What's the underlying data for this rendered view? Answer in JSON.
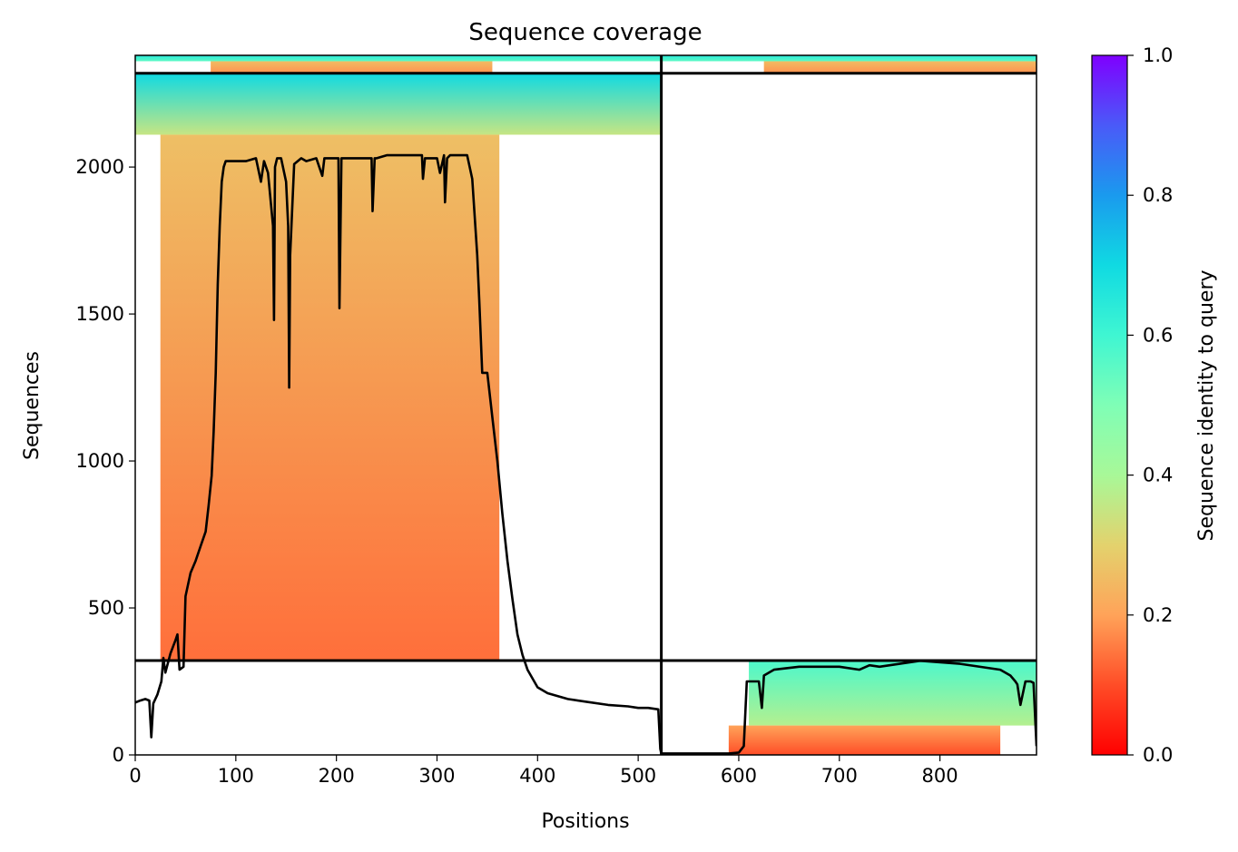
{
  "chart_data": {
    "type": "heatmap",
    "title": "Sequence coverage",
    "xlabel": "Positions",
    "ylabel": "Sequences",
    "xlim": [
      0,
      896
    ],
    "ylim": [
      0,
      2380
    ],
    "xticks": [
      0,
      100,
      200,
      300,
      400,
      500,
      600,
      700,
      800
    ],
    "yticks": [
      0,
      500,
      1000,
      1500,
      2000
    ],
    "domain_boundaries": {
      "x": [
        523
      ],
      "y": [
        321,
        2319
      ]
    },
    "colorbar": {
      "label": "Sequence identity to query",
      "colormap": "rainbow",
      "range": [
        0.0,
        1.0
      ],
      "ticks": [
        "0.0",
        "0.2",
        "0.4",
        "0.6",
        "0.8",
        "1.0"
      ]
    },
    "coverage_blocks": [
      {
        "name": "block-chain1-main",
        "x_start": 25,
        "x_end": 362,
        "y_start": 321,
        "y_end": 2110,
        "identity_bottom": 0.14,
        "identity_top": 0.26
      },
      {
        "name": "block-chain1-top",
        "x_start": 0,
        "x_end": 523,
        "y_start": 2110,
        "y_end": 2319,
        "identity_bottom": 0.35,
        "identity_top": 0.7
      },
      {
        "name": "block-chain1-upper-strip",
        "x_start": 75,
        "x_end": 355,
        "y_start": 2319,
        "y_end": 2360,
        "identity_bottom": 0.18,
        "identity_top": 0.25
      },
      {
        "name": "block-chain1-topmost",
        "x_start": 0,
        "x_end": 523,
        "y_start": 2360,
        "y_end": 2380,
        "identity_bottom": 0.55,
        "identity_top": 0.65
      },
      {
        "name": "block-chain2-upper-strip",
        "x_start": 625,
        "x_end": 896,
        "y_start": 2319,
        "y_end": 2360,
        "identity_bottom": 0.18,
        "identity_top": 0.25
      },
      {
        "name": "block-chain2-topmost",
        "x_start": 523,
        "x_end": 896,
        "y_start": 2360,
        "y_end": 2380,
        "identity_bottom": 0.55,
        "identity_top": 0.65
      },
      {
        "name": "block-chain2-main",
        "x_start": 610,
        "x_end": 896,
        "y_start": 100,
        "y_end": 321,
        "identity_bottom": 0.38,
        "identity_top": 0.58
      },
      {
        "name": "block-chain2-low",
        "x_start": 590,
        "x_end": 860,
        "y_start": 0,
        "y_end": 100,
        "identity_bottom": 0.1,
        "identity_top": 0.2
      }
    ],
    "series": [
      {
        "style": "line",
        "color": "#000000",
        "x": [
          0,
          5,
          10,
          14,
          16,
          18,
          22,
          26,
          28,
          30,
          35,
          40,
          42,
          44,
          48,
          50,
          55,
          60,
          65,
          70,
          73,
          76,
          78,
          80,
          82,
          84,
          86,
          88,
          90,
          92,
          100,
          110,
          120,
          125,
          128,
          132,
          137,
          138,
          139,
          141,
          145,
          150,
          152,
          153,
          154,
          158,
          165,
          170,
          180,
          186,
          188,
          190,
          195,
          202,
          203,
          205,
          208,
          220,
          235,
          236,
          238,
          240,
          250,
          260,
          270,
          285,
          286,
          288,
          290,
          300,
          303,
          307,
          308,
          310,
          313,
          320,
          330,
          335,
          340,
          342,
          345,
          350,
          355,
          360,
          365,
          370,
          375,
          380,
          385,
          390,
          400,
          410,
          430,
          450,
          470,
          490,
          500,
          510,
          520,
          522,
          523,
          530,
          560,
          590,
          600,
          605,
          608,
          610,
          620,
          623,
          625,
          635,
          660,
          700,
          720,
          730,
          740,
          780,
          820,
          860,
          870,
          875,
          877,
          880,
          885,
          890,
          893,
          896
        ],
        "y": [
          178,
          185,
          190,
          185,
          60,
          175,
          205,
          250,
          330,
          280,
          345,
          390,
          410,
          290,
          300,
          540,
          620,
          660,
          710,
          760,
          850,
          950,
          1100,
          1300,
          1600,
          1800,
          1950,
          2000,
          2020,
          2020,
          2020,
          2020,
          2030,
          1950,
          2020,
          1980,
          1800,
          1480,
          2000,
          2030,
          2030,
          1950,
          1800,
          1250,
          1700,
          2010,
          2030,
          2020,
          2030,
          1970,
          2030,
          2030,
          2030,
          2030,
          1520,
          2030,
          2030,
          2030,
          2030,
          1850,
          2030,
          2030,
          2040,
          2040,
          2040,
          2040,
          1960,
          2030,
          2030,
          2030,
          1980,
          2040,
          1880,
          2030,
          2040,
          2040,
          2040,
          1960,
          1700,
          1550,
          1300,
          1300,
          1150,
          1000,
          820,
          660,
          530,
          410,
          340,
          290,
          230,
          210,
          190,
          180,
          170,
          165,
          160,
          160,
          155,
          20,
          5,
          5,
          5,
          5,
          8,
          30,
          250,
          250,
          250,
          160,
          270,
          290,
          300,
          300,
          290,
          305,
          300,
          320,
          310,
          290,
          270,
          250,
          240,
          170,
          250,
          250,
          245,
          30
        ]
      }
    ]
  }
}
